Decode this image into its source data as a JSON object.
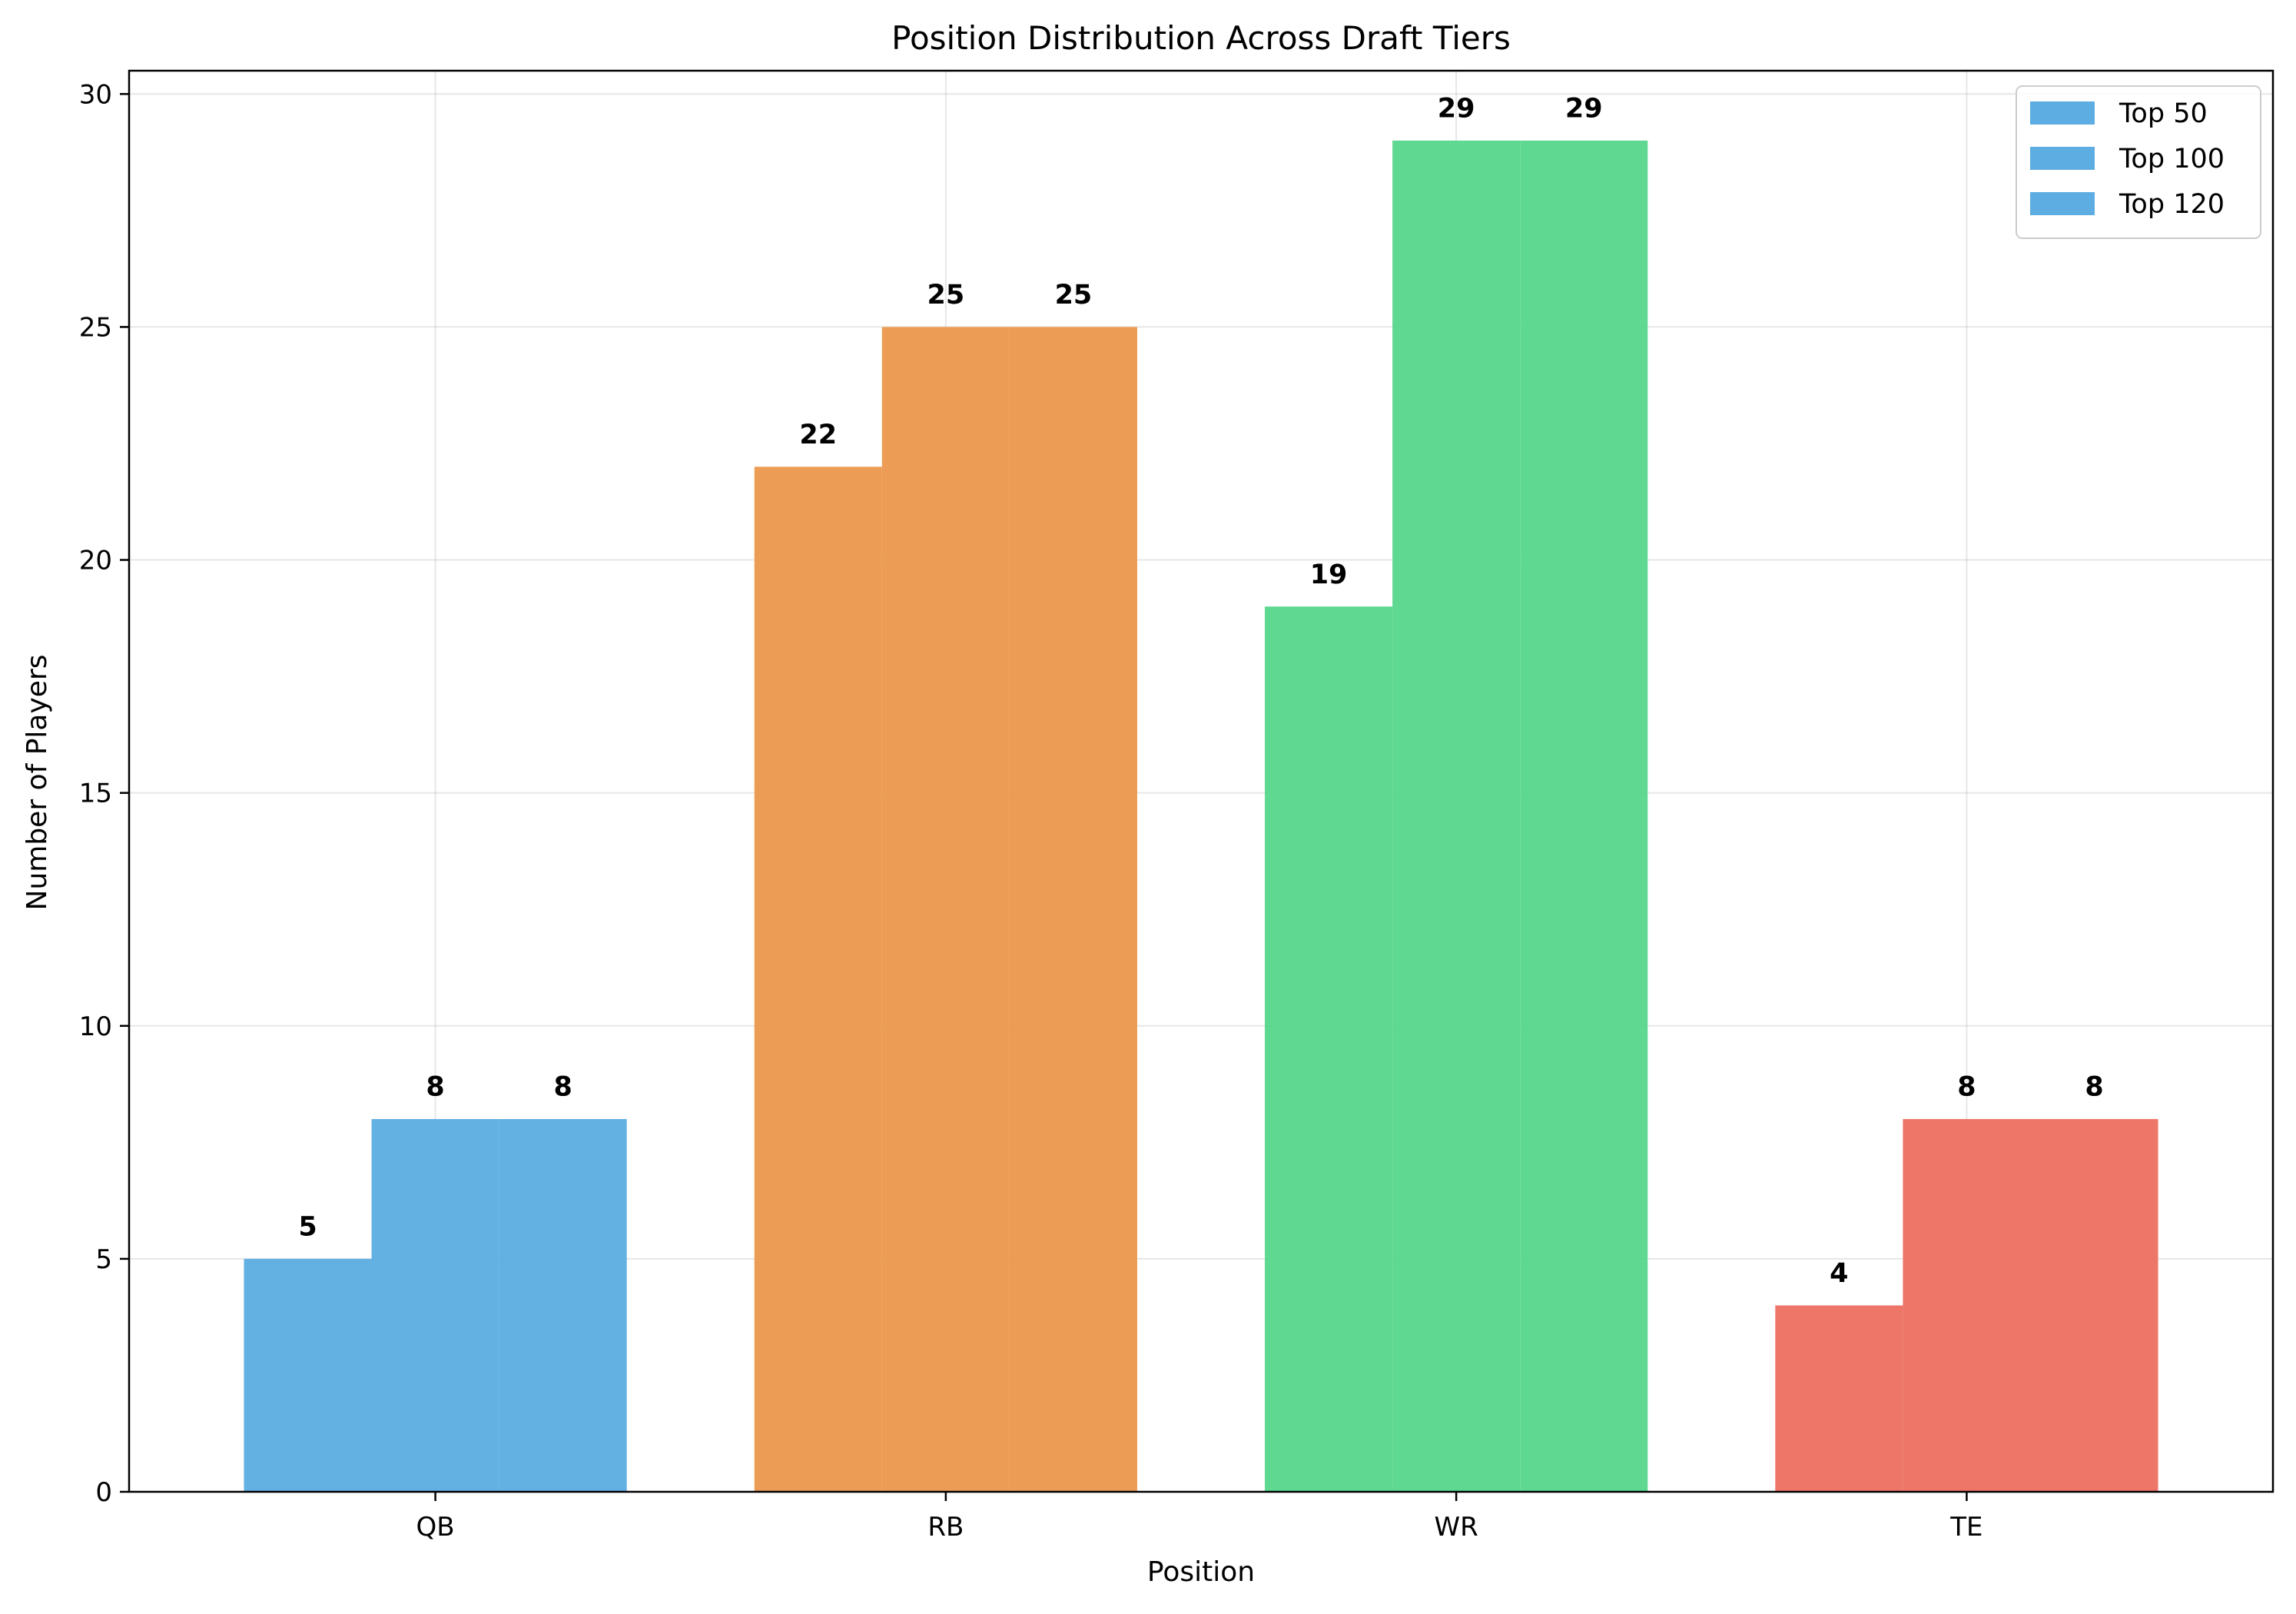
{
  "chart_data": {
    "type": "bar",
    "title": "Position Distribution Across Draft Tiers",
    "xlabel": "Position",
    "ylabel": "Number of Players",
    "categories": [
      "QB",
      "RB",
      "WR",
      "TE"
    ],
    "category_colors": [
      "#5DADE2",
      "#EB984E",
      "#58D68D",
      "#EC7063"
    ],
    "series": [
      {
        "name": "Top 50",
        "values": [
          5,
          22,
          19,
          4
        ]
      },
      {
        "name": "Top 100",
        "values": [
          8,
          25,
          29,
          8
        ]
      },
      {
        "name": "Top 120",
        "values": [
          8,
          25,
          29,
          8
        ]
      }
    ],
    "ylim": [
      0,
      30.5
    ],
    "yticks": [
      0,
      5,
      10,
      15,
      20,
      25,
      30
    ],
    "grid": true,
    "legend": {
      "placement": "top-right",
      "color": "#5DADE2",
      "entries": [
        "Top 50",
        "Top 100",
        "Top 120"
      ]
    }
  }
}
